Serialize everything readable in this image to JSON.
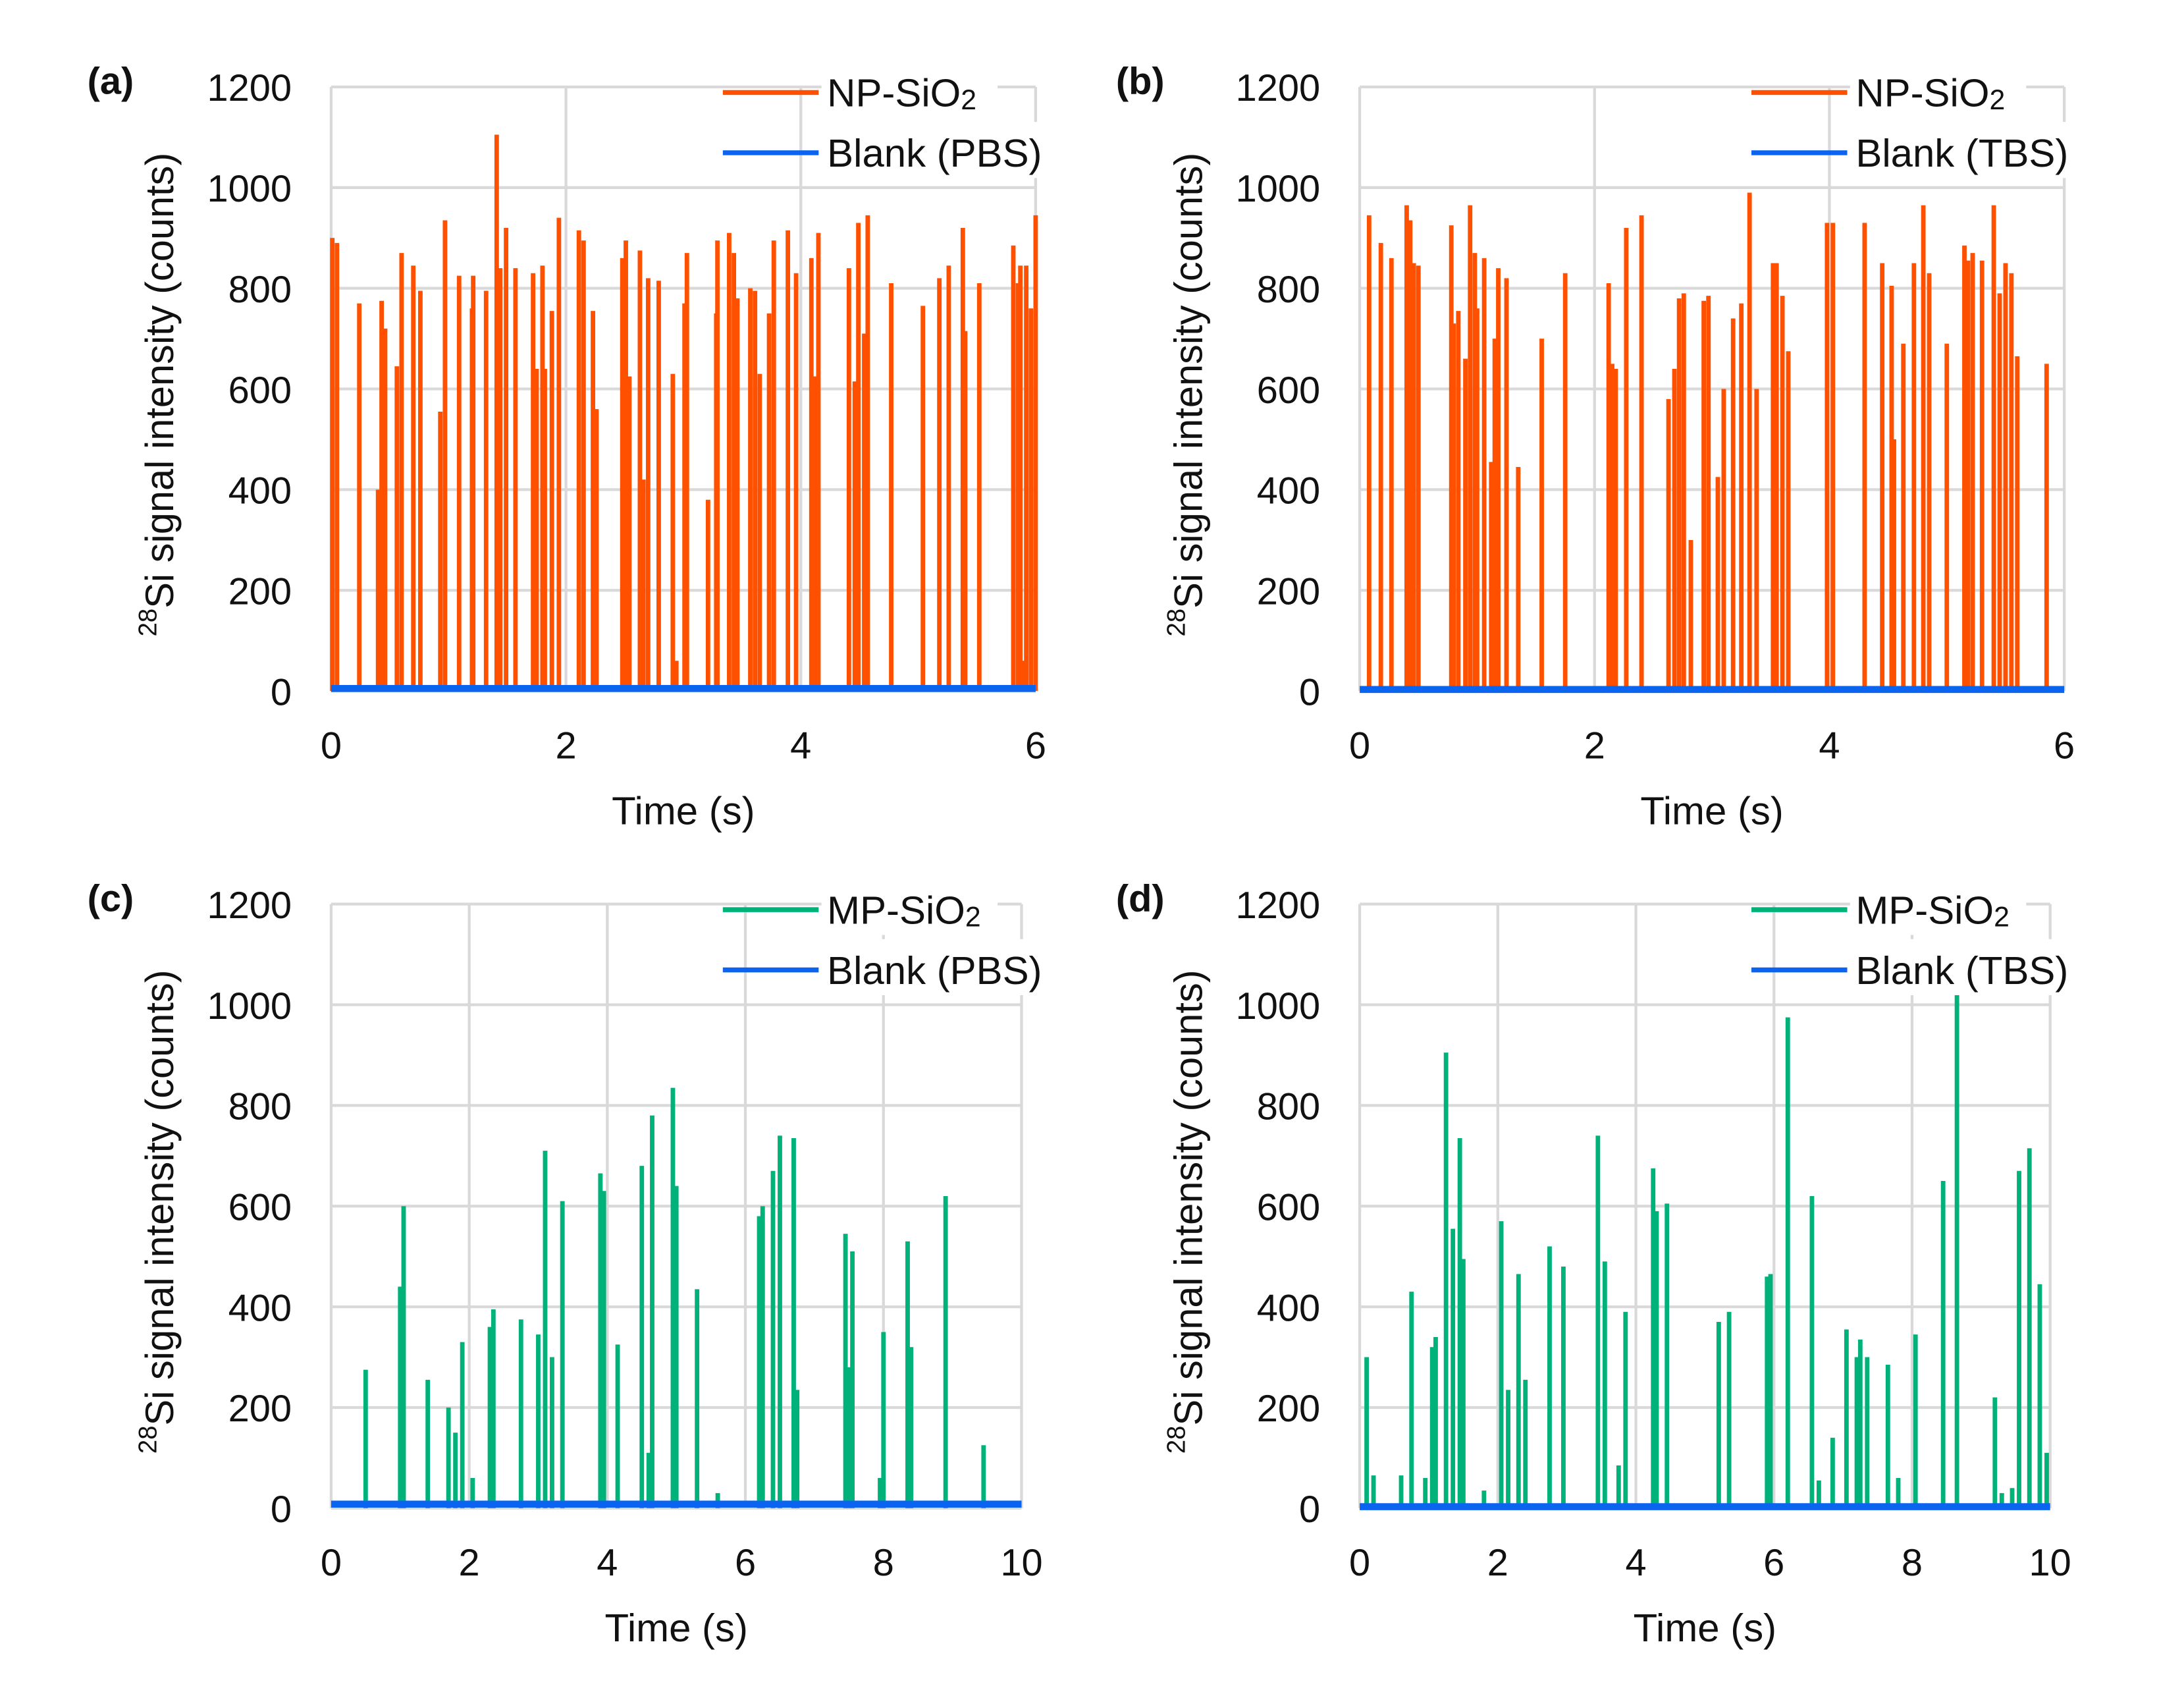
{
  "chart_data": [
    {
      "id": "a",
      "panel_label": "(a)",
      "type": "line",
      "xlabel": "Time (s)",
      "ylabel_sup": "28",
      "ylabel": "Si signal intensity (counts)",
      "xlim": [
        0,
        6
      ],
      "ylim": [
        0,
        1200
      ],
      "xticks": [
        "0",
        "2",
        "4",
        "6"
      ],
      "yticks": [
        "0",
        "200",
        "400",
        "600",
        "800",
        "1000",
        "1200"
      ],
      "grid": true,
      "legend_position": "top-right",
      "series": [
        {
          "name": "NP-SiO",
          "name_sub": "2",
          "color": "#ff5000",
          "kind": "spikes",
          "points": [
            [
              0.01,
              900
            ],
            [
              0.05,
              890
            ],
            [
              0.24,
              770
            ],
            [
              0.4,
              400
            ],
            [
              0.43,
              775
            ],
            [
              0.46,
              720
            ],
            [
              0.56,
              645
            ],
            [
              0.6,
              870
            ],
            [
              0.7,
              845
            ],
            [
              0.76,
              795
            ],
            [
              0.93,
              555
            ],
            [
              0.97,
              935
            ],
            [
              1.09,
              825
            ],
            [
              1.2,
              760
            ],
            [
              1.21,
              825
            ],
            [
              1.32,
              795
            ],
            [
              1.41,
              1105
            ],
            [
              1.44,
              840
            ],
            [
              1.49,
              920
            ],
            [
              1.57,
              840
            ],
            [
              1.72,
              830
            ],
            [
              1.75,
              640
            ],
            [
              1.8,
              845
            ],
            [
              1.82,
              640
            ],
            [
              1.88,
              755
            ],
            [
              1.94,
              940
            ],
            [
              2.11,
              915
            ],
            [
              2.15,
              895
            ],
            [
              2.23,
              755
            ],
            [
              2.26,
              560
            ],
            [
              2.48,
              860
            ],
            [
              2.51,
              895
            ],
            [
              2.54,
              625
            ],
            [
              2.63,
              875
            ],
            [
              2.66,
              420
            ],
            [
              2.7,
              820
            ],
            [
              2.79,
              815
            ],
            [
              2.91,
              630
            ],
            [
              2.94,
              60
            ],
            [
              3.01,
              770
            ],
            [
              3.03,
              870
            ],
            [
              3.21,
              380
            ],
            [
              3.28,
              750
            ],
            [
              3.29,
              895
            ],
            [
              3.39,
              910
            ],
            [
              3.43,
              870
            ],
            [
              3.46,
              780
            ],
            [
              3.57,
              800
            ],
            [
              3.61,
              795
            ],
            [
              3.65,
              630
            ],
            [
              3.73,
              750
            ],
            [
              3.77,
              895
            ],
            [
              3.89,
              915
            ],
            [
              3.96,
              830
            ],
            [
              4.09,
              860
            ],
            [
              4.12,
              625
            ],
            [
              4.15,
              910
            ],
            [
              4.41,
              840
            ],
            [
              4.46,
              615
            ],
            [
              4.49,
              930
            ],
            [
              4.54,
              710
            ],
            [
              4.57,
              945
            ],
            [
              4.77,
              810
            ],
            [
              5.04,
              765
            ],
            [
              5.18,
              820
            ],
            [
              5.26,
              845
            ],
            [
              5.38,
              920
            ],
            [
              5.4,
              715
            ],
            [
              5.52,
              810
            ],
            [
              5.81,
              885
            ],
            [
              5.85,
              810
            ],
            [
              5.87,
              845
            ],
            [
              5.9,
              60
            ],
            [
              5.92,
              845
            ],
            [
              5.96,
              760
            ],
            [
              6.0,
              945
            ]
          ]
        },
        {
          "name": "Blank (PBS)",
          "color": "#0a64f0",
          "kind": "baseline",
          "level": 5
        }
      ]
    },
    {
      "id": "b",
      "panel_label": "(b)",
      "type": "line",
      "xlabel": "Time (s)",
      "ylabel_sup": "28",
      "ylabel": "Si signal intensity (counts)",
      "xlim": [
        0,
        6
      ],
      "ylim": [
        0,
        1200
      ],
      "xticks": [
        "0",
        "2",
        "4",
        "6"
      ],
      "yticks": [
        "0",
        "200",
        "400",
        "600",
        "800",
        "1000",
        "1200"
      ],
      "grid": true,
      "legend_position": "top-right",
      "series": [
        {
          "name": "NP-SiO",
          "name_sub": "2",
          "color": "#ff5000",
          "kind": "spikes",
          "points": [
            [
              0.08,
              945
            ],
            [
              0.18,
              890
            ],
            [
              0.27,
              860
            ],
            [
              0.4,
              965
            ],
            [
              0.43,
              935
            ],
            [
              0.46,
              850
            ],
            [
              0.5,
              845
            ],
            [
              0.78,
              925
            ],
            [
              0.8,
              730
            ],
            [
              0.84,
              755
            ],
            [
              0.9,
              660
            ],
            [
              0.94,
              965
            ],
            [
              0.98,
              870
            ],
            [
              1.0,
              760
            ],
            [
              1.06,
              860
            ],
            [
              1.12,
              455
            ],
            [
              1.15,
              700
            ],
            [
              1.18,
              840
            ],
            [
              1.25,
              820
            ],
            [
              1.35,
              445
            ],
            [
              1.55,
              700
            ],
            [
              1.75,
              830
            ],
            [
              2.12,
              810
            ],
            [
              2.15,
              650
            ],
            [
              2.18,
              640
            ],
            [
              2.27,
              920
            ],
            [
              2.4,
              945
            ],
            [
              2.63,
              580
            ],
            [
              2.68,
              640
            ],
            [
              2.72,
              780
            ],
            [
              2.76,
              790
            ],
            [
              2.82,
              300
            ],
            [
              2.93,
              775
            ],
            [
              2.97,
              785
            ],
            [
              3.05,
              425
            ],
            [
              3.1,
              600
            ],
            [
              3.18,
              740
            ],
            [
              3.25,
              770
            ],
            [
              3.32,
              990
            ],
            [
              3.38,
              600
            ],
            [
              3.52,
              850
            ],
            [
              3.55,
              850
            ],
            [
              3.6,
              785
            ],
            [
              3.65,
              675
            ],
            [
              3.98,
              930
            ],
            [
              4.03,
              930
            ],
            [
              4.3,
              930
            ],
            [
              4.45,
              850
            ],
            [
              4.53,
              805
            ],
            [
              4.55,
              500
            ],
            [
              4.63,
              690
            ],
            [
              4.72,
              850
            ],
            [
              4.8,
              965
            ],
            [
              4.85,
              830
            ],
            [
              5.0,
              690
            ],
            [
              5.15,
              885
            ],
            [
              5.18,
              855
            ],
            [
              5.22,
              870
            ],
            [
              5.3,
              855
            ],
            [
              5.4,
              965
            ],
            [
              5.45,
              790
            ],
            [
              5.5,
              850
            ],
            [
              5.55,
              830
            ],
            [
              5.6,
              665
            ],
            [
              5.85,
              650
            ]
          ]
        },
        {
          "name": "Blank (TBS)",
          "color": "#0a64f0",
          "kind": "baseline",
          "level": 3
        }
      ]
    },
    {
      "id": "c",
      "panel_label": "(c)",
      "type": "line",
      "xlabel": "Time (s)",
      "ylabel_sup": "28",
      "ylabel": "Si signal intensity (counts)",
      "xlim": [
        0,
        10
      ],
      "ylim": [
        0,
        1200
      ],
      "xticks": [
        "0",
        "2",
        "4",
        "6",
        "8",
        "10"
      ],
      "yticks": [
        "0",
        "200",
        "400",
        "600",
        "800",
        "1000",
        "1200"
      ],
      "grid": true,
      "legend_position": "top-right",
      "series": [
        {
          "name": "MP-SiO",
          "name_sub": "2",
          "color": "#00b27a",
          "kind": "spikes",
          "points": [
            [
              0.5,
              275
            ],
            [
              1.0,
              440
            ],
            [
              1.05,
              600
            ],
            [
              1.4,
              255
            ],
            [
              1.7,
              200
            ],
            [
              1.8,
              150
            ],
            [
              1.9,
              330
            ],
            [
              2.05,
              60
            ],
            [
              2.3,
              360
            ],
            [
              2.35,
              395
            ],
            [
              2.75,
              375
            ],
            [
              3.0,
              345
            ],
            [
              3.1,
              710
            ],
            [
              3.2,
              300
            ],
            [
              3.35,
              610
            ],
            [
              3.9,
              665
            ],
            [
              3.95,
              630
            ],
            [
              4.15,
              325
            ],
            [
              4.5,
              680
            ],
            [
              4.6,
              110
            ],
            [
              4.65,
              780
            ],
            [
              4.95,
              835
            ],
            [
              5.0,
              640
            ],
            [
              5.3,
              435
            ],
            [
              5.6,
              30
            ],
            [
              6.2,
              580
            ],
            [
              6.25,
              600
            ],
            [
              6.4,
              670
            ],
            [
              6.5,
              740
            ],
            [
              6.7,
              735
            ],
            [
              6.75,
              235
            ],
            [
              7.45,
              545
            ],
            [
              7.5,
              280
            ],
            [
              7.55,
              510
            ],
            [
              7.95,
              60
            ],
            [
              8.0,
              350
            ],
            [
              8.35,
              530
            ],
            [
              8.4,
              320
            ],
            [
              8.9,
              620
            ],
            [
              9.45,
              125
            ]
          ]
        },
        {
          "name": "Blank (PBS)",
          "color": "#0a64f0",
          "kind": "baseline",
          "level": 8
        }
      ]
    },
    {
      "id": "d",
      "panel_label": "(d)",
      "type": "line",
      "xlabel": "Time (s)",
      "ylabel_sup": "28",
      "ylabel": "Si signal intensity (counts)",
      "xlim": [
        0,
        10
      ],
      "ylim": [
        0,
        1200
      ],
      "xticks": [
        "0",
        "2",
        "4",
        "6",
        "8",
        "10"
      ],
      "yticks": [
        "0",
        "200",
        "400",
        "600",
        "800",
        "1000",
        "1200"
      ],
      "grid": true,
      "legend_position": "top-right",
      "series": [
        {
          "name": "MP-SiO",
          "name_sub": "2",
          "color": "#00b27a",
          "kind": "spikes",
          "points": [
            [
              0.1,
              300
            ],
            [
              0.2,
              65
            ],
            [
              0.6,
              65
            ],
            [
              0.75,
              430
            ],
            [
              0.95,
              60
            ],
            [
              1.05,
              320
            ],
            [
              1.1,
              340
            ],
            [
              1.25,
              905
            ],
            [
              1.35,
              555
            ],
            [
              1.45,
              735
            ],
            [
              1.5,
              495
            ],
            [
              1.8,
              35
            ],
            [
              2.05,
              570
            ],
            [
              2.15,
              235
            ],
            [
              2.3,
              465
            ],
            [
              2.4,
              255
            ],
            [
              2.75,
              520
            ],
            [
              2.95,
              480
            ],
            [
              3.45,
              740
            ],
            [
              3.55,
              490
            ],
            [
              3.75,
              85
            ],
            [
              3.85,
              390
            ],
            [
              4.25,
              675
            ],
            [
              4.3,
              590
            ],
            [
              4.45,
              605
            ],
            [
              5.2,
              370
            ],
            [
              5.35,
              390
            ],
            [
              5.9,
              460
            ],
            [
              5.95,
              465
            ],
            [
              6.2,
              975
            ],
            [
              6.55,
              620
            ],
            [
              6.65,
              55
            ],
            [
              6.85,
              140
            ],
            [
              7.05,
              355
            ],
            [
              7.2,
              300
            ],
            [
              7.25,
              335
            ],
            [
              7.35,
              300
            ],
            [
              7.65,
              285
            ],
            [
              7.8,
              60
            ],
            [
              8.05,
              345
            ],
            [
              8.45,
              650
            ],
            [
              8.65,
              1050
            ],
            [
              9.2,
              220
            ],
            [
              9.3,
              30
            ],
            [
              9.45,
              40
            ],
            [
              9.55,
              670
            ],
            [
              9.7,
              715
            ],
            [
              9.85,
              445
            ],
            [
              9.95,
              110
            ]
          ]
        },
        {
          "name": "Blank (TBS)",
          "color": "#0a64f0",
          "kind": "baseline",
          "level": 3
        }
      ]
    }
  ]
}
